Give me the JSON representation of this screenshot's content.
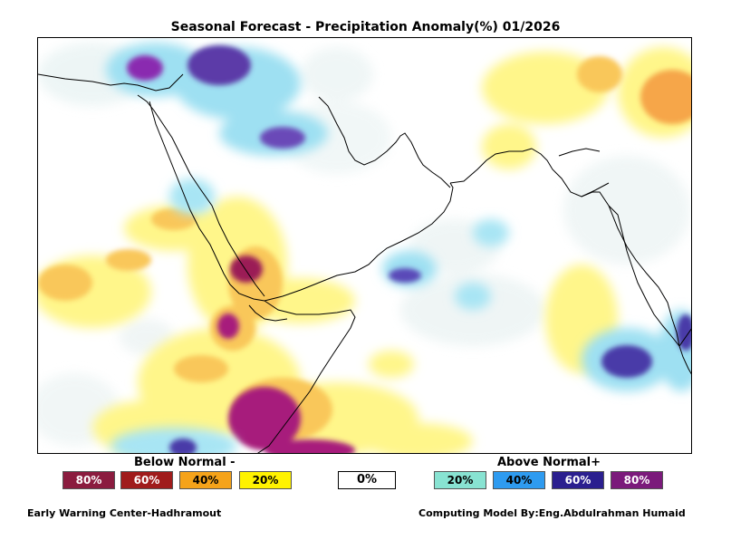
{
  "title": "Seasonal Forecast - Precipitation Anomaly(%) 01/2026",
  "legend": {
    "below_label": "Below Normal -",
    "above_label": "Above Normal+",
    "zero_label": "0%",
    "below_items": [
      {
        "label": "80%",
        "color": "#8b1c3f"
      },
      {
        "label": "60%",
        "color": "#a01c1c"
      },
      {
        "label": "40%",
        "color": "#f5a31a"
      },
      {
        "label": "20%",
        "color": "#fff200"
      }
    ],
    "above_items": [
      {
        "label": "20%",
        "color": "#88e3d2"
      },
      {
        "label": "40%",
        "color": "#2e9bf0"
      },
      {
        "label": "60%",
        "color": "#2b1f8f"
      },
      {
        "label": "80%",
        "color": "#7b1a7b"
      }
    ]
  },
  "footer": {
    "left": "Early Warning Center-Hadhramout",
    "right": "Computing Model By:Eng.Abdulrahman Humaid"
  }
}
